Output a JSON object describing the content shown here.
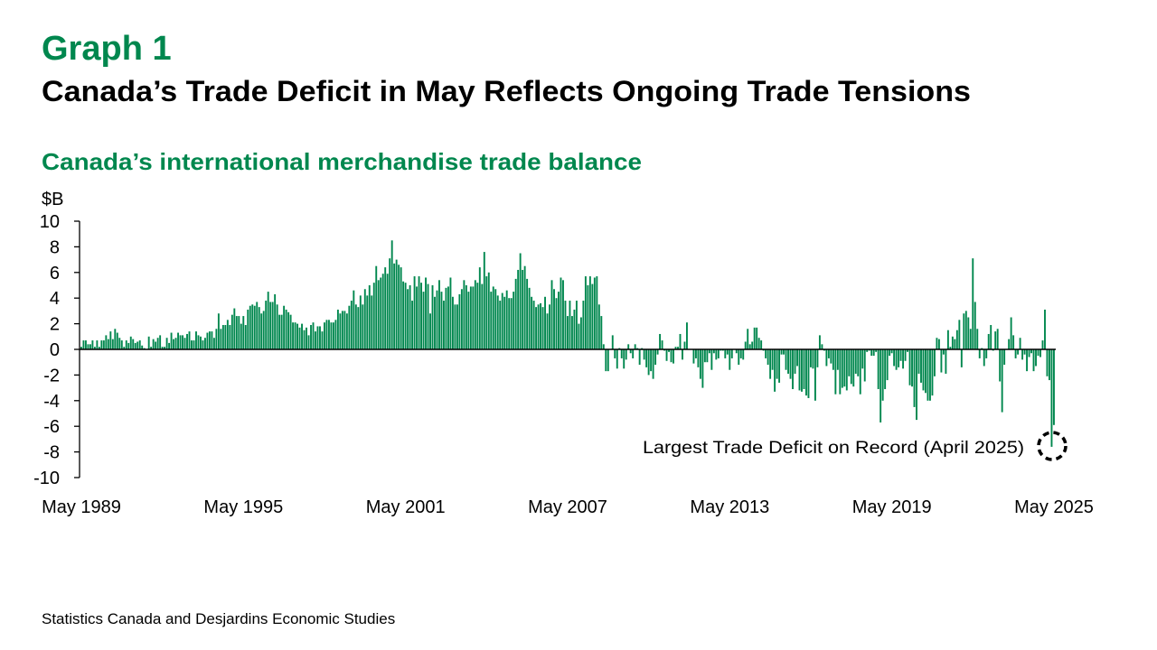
{
  "header": {
    "graph_label": "Graph 1",
    "title": "Canada’s Trade Deficit in May Reflects Ongoing Trade Tensions",
    "subtitle": "Canada’s international merchandise trade balance"
  },
  "source": "Statistics Canada and Desjardins Economic Studies",
  "colors": {
    "accent": "#00874E",
    "bars": "#00874E",
    "axis": "#000000"
  },
  "chart_data": {
    "type": "bar",
    "frequency": "monthly",
    "start": "May 1989",
    "end": "May 2025",
    "ylabel": "$B",
    "ylim": [
      -10,
      10
    ],
    "yticks": [
      10,
      8,
      6,
      4,
      2,
      0,
      -2,
      -4,
      -6,
      -8,
      -10
    ],
    "xtick_labels": [
      "May 1989",
      "May 1995",
      "May 2001",
      "May 2007",
      "May 2013",
      "May 2019",
      "May 2025"
    ],
    "grid": false,
    "annotation": {
      "text": "Largest Trade Deficit on Record (April 2025)",
      "target": "April 2025"
    },
    "values": [
      0.2,
      0.7,
      0.7,
      0.4,
      0.4,
      0.7,
      0.2,
      0.7,
      0.2,
      0.7,
      0.7,
      1.1,
      0.8,
      1.4,
      0.8,
      1.6,
      1.3,
      0.9,
      0.7,
      0.2,
      0.7,
      0.5,
      1.0,
      0.8,
      0.5,
      0.6,
      0.7,
      0.3,
      0.1,
      0,
      1.0,
      0.2,
      0.8,
      0.6,
      0.9,
      1.1,
      0.2,
      0.2,
      0.9,
      0.5,
      1.3,
      0.8,
      0.9,
      1.3,
      1.1,
      1.1,
      0.9,
      1.2,
      1.4,
      0.7,
      0.7,
      1.4,
      1.1,
      1.0,
      0.7,
      0.9,
      1.3,
      1.4,
      1.4,
      0.9,
      1.6,
      2.8,
      1.6,
      1.9,
      1.9,
      2.3,
      1.9,
      2.7,
      3.2,
      2.6,
      2.6,
      2.0,
      2.6,
      1.9,
      3.1,
      3.4,
      3.5,
      3.4,
      3.7,
      3.3,
      2.8,
      3.0,
      3.8,
      4.5,
      3.7,
      3.7,
      4.3,
      3.5,
      2.7,
      2.7,
      3.4,
      3.1,
      2.9,
      2.7,
      2.1,
      2.1,
      2.0,
      1.7,
      2.0,
      1.5,
      1.7,
      1.1,
      1.9,
      2.1,
      1.4,
      1.8,
      1.8,
      1.4,
      2.1,
      2.3,
      2.3,
      2.1,
      2.1,
      2.3,
      3.1,
      2.8,
      3.0,
      3.0,
      2.8,
      3.4,
      3.8,
      4.6,
      3.5,
      3.3,
      4.2,
      3.5,
      4.7,
      4.2,
      5.0,
      4.2,
      5.2,
      6.5,
      5.4,
      5.6,
      5.9,
      6.4,
      5.9,
      7.1,
      8.5,
      6.7,
      7.0,
      6.6,
      6.4,
      5.3,
      5.2,
      4.7,
      5.0,
      3.8,
      5.7,
      4.9,
      5.7,
      5.2,
      4.5,
      5.6,
      5.1,
      2.8,
      5.0,
      4.1,
      4.6,
      5.4,
      4.5,
      3.8,
      4.8,
      4.9,
      5.6,
      4.1,
      3.5,
      3.5,
      4.3,
      4.7,
      5.4,
      5.0,
      4.5,
      4.9,
      4.9,
      5.4,
      5.2,
      6.4,
      5.1,
      7.6,
      5.7,
      6.0,
      4.5,
      4.9,
      4.7,
      4.2,
      3.8,
      4.4,
      4.1,
      4.6,
      4.0,
      4.0,
      4.5,
      5.5,
      6.2,
      7.5,
      6.2,
      6.5,
      5.5,
      4.8,
      4.1,
      3.8,
      3.3,
      3.5,
      3.6,
      3.3,
      4.1,
      2.8,
      3.5,
      5.4,
      4.7,
      4.0,
      4.5,
      5.6,
      5.4,
      3.8,
      2.6,
      3.8,
      2.6,
      3.1,
      3.8,
      2.0,
      2.5,
      3.8,
      5.7,
      5.0,
      5.7,
      5.1,
      5.6,
      5.7,
      3.5,
      2.6,
      0.4,
      -1.7,
      -1.7,
      0,
      1.1,
      -0.7,
      -1.5,
      0.1,
      -0.7,
      -1.5,
      -0.8,
      0.4,
      -0.3,
      -0.7,
      0.4,
      0.1,
      -1.2,
      0.1,
      -0.8,
      -1.4,
      -2.0,
      -1.7,
      -2.3,
      -1.2,
      -0.4,
      1.2,
      0.7,
      -0.1,
      -0.9,
      -0.2,
      -1.0,
      -1.1,
      0.2,
      0.2,
      1.2,
      -0.8,
      0.6,
      2.1,
      0,
      0,
      -1.1,
      -0.7,
      -1.4,
      -2.3,
      -3.0,
      -1.0,
      -1.0,
      -0.3,
      -1.6,
      -0.3,
      -0.8,
      -0.7,
      -0.1,
      -0.1,
      -0.7,
      -0.4,
      -1.6,
      -0.7,
      0,
      -0.3,
      -1.2,
      -0.7,
      -0.8,
      0.6,
      1.6,
      0.4,
      0.6,
      1.7,
      1.7,
      0.9,
      0.7,
      -0.1,
      -0.7,
      -1.2,
      -2.3,
      -1.6,
      -3.3,
      -2.3,
      -2.6,
      -0.4,
      -0.4,
      -1.6,
      -1.9,
      -2.3,
      -3.1,
      -1.9,
      -1.3,
      -3.2,
      -3.3,
      -3.1,
      -3.6,
      -3.8,
      -1.4,
      -1.5,
      -4.0,
      -1.4,
      1.1,
      0.4,
      -0.1,
      -1.3,
      -0.7,
      -1.1,
      -1.6,
      -3.5,
      -1.6,
      -3.5,
      -3.0,
      -2.9,
      -3.2,
      -2.1,
      -2.7,
      -2.9,
      -1.9,
      -2.1,
      -3.5,
      -1.5,
      -2.5,
      -0.2,
      -0.1,
      -0.5,
      -0.5,
      -0.2,
      -3.1,
      -5.7,
      -4.0,
      -3.1,
      -2.4,
      -0.5,
      -0.3,
      -1.3,
      -1.6,
      -1.4,
      -0.9,
      -1.5,
      -0.9,
      -0.2,
      -2.8,
      -2.9,
      -4.5,
      -5.5,
      -1.9,
      -2.6,
      -3.2,
      -3.4,
      -4.0,
      -4.0,
      -3.6,
      -2.1,
      0.9,
      0.8,
      -1.8,
      -0.4,
      -1.9,
      1.5,
      0.2,
      1.0,
      0.8,
      1.5,
      2.3,
      -1.4,
      2.8,
      3.0,
      2.5,
      1.6,
      7.1,
      3.7,
      1.6,
      -0.7,
      0.1,
      -1.3,
      -0.7,
      1.2,
      1.9,
      -0.1,
      1.4,
      1.6,
      -2.5,
      -4.9,
      -1.2,
      0,
      0.8,
      2.5,
      1.1,
      -0.7,
      -0.4,
      0.9,
      -0.8,
      -0.4,
      -1.7,
      -0.6,
      -0.3,
      -1.7,
      -1.3,
      -0.5,
      -0.6,
      0.7,
      3.1,
      -2.1,
      -2.4,
      -7.6,
      -5.9
    ]
  }
}
